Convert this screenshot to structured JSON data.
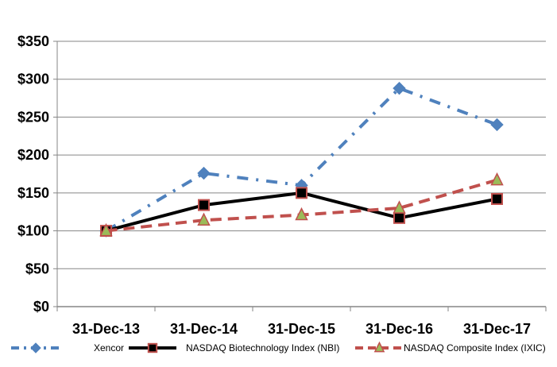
{
  "chart_data": {
    "type": "line",
    "title": "",
    "xlabel": "",
    "ylabel": "",
    "categories": [
      "31-Dec-13",
      "31-Dec-14",
      "31-Dec-15",
      "31-Dec-16",
      "31-Dec-17"
    ],
    "ylim": [
      0,
      350
    ],
    "yticks": [
      0,
      50,
      100,
      150,
      200,
      250,
      300,
      350
    ],
    "ytick_labels": [
      "$0",
      "$50",
      "$100",
      "$150",
      "$200",
      "$250",
      "$300",
      "$350"
    ],
    "grid": "horizontal",
    "legend_position": "bottom",
    "series": [
      {
        "name": "Xencor",
        "values": [
          100,
          176,
          160,
          288,
          240
        ],
        "color": "#4f81bd",
        "line_style": "dash-dot",
        "marker": "diamond"
      },
      {
        "name": "NASDAQ Biotechnology Index (NBI)",
        "values": [
          100,
          134,
          150,
          117,
          142
        ],
        "color": "#000000",
        "marker_edge": "#c0504d",
        "line_style": "solid",
        "marker": "square"
      },
      {
        "name": "NASDAQ Composite Index (IXIC)",
        "values": [
          100,
          114,
          121,
          130,
          167
        ],
        "color": "#c0504d",
        "marker_fill": "#9bbb59",
        "marker_edge": "#c0504d",
        "line_style": "dashed",
        "marker": "triangle"
      }
    ]
  }
}
